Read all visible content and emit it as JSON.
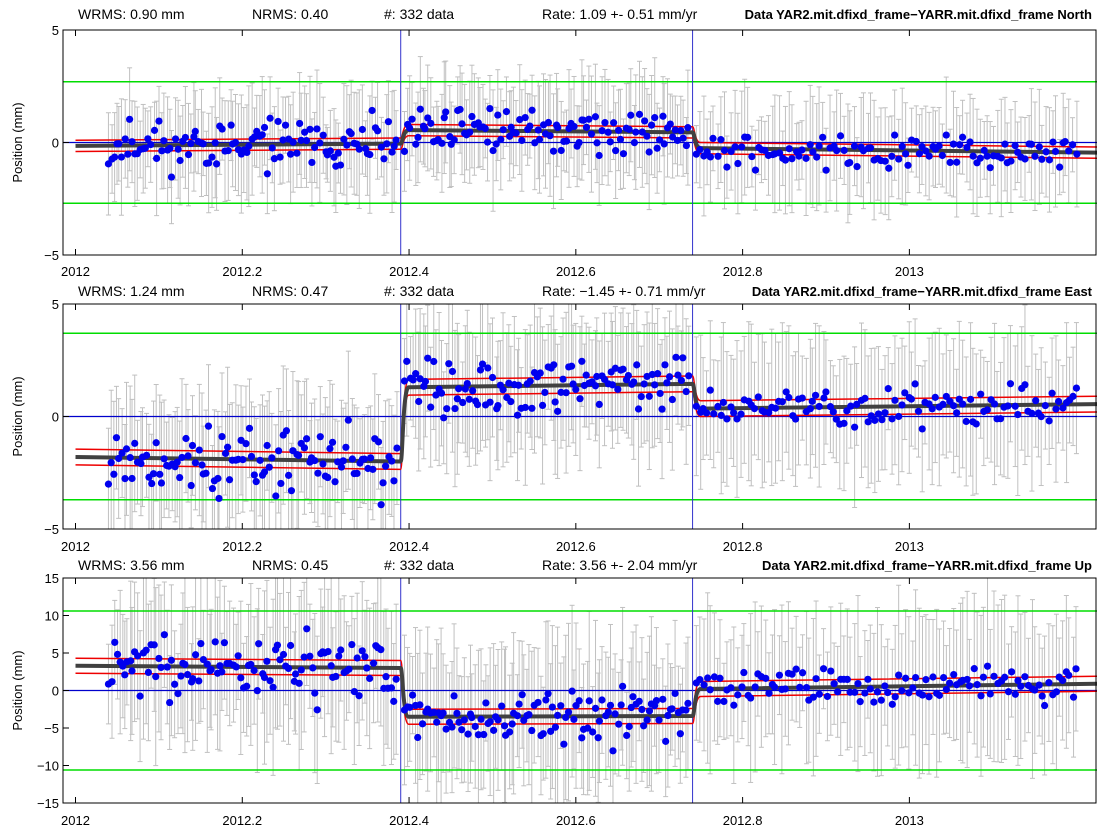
{
  "colors": {
    "points": "#0000ee",
    "error_bars": "#c0c0c0",
    "model": "#404040",
    "envelope": "#ee0000",
    "threshold": "#00dd00",
    "zero_line": "#0000cc",
    "break_line": "#3333cc"
  },
  "chart_data": [
    {
      "type": "scatter",
      "panel": "north",
      "stats": {
        "wrms": "WRMS:   0.90 mm",
        "nrms": "NRMS:  0.40",
        "count": "#:  332 data",
        "rate": "Rate:     1.09 +-   0.51 mm/yr"
      },
      "title": "Data YAR2.mit.dfixd_frame−YARR.mit.dfixd_frame North",
      "ylabel": "Position (mm)",
      "xlim": [
        2011.985,
        2013.225
      ],
      "ylim": [
        -5,
        5
      ],
      "xticks": [
        2012,
        2012.2,
        2012.4,
        2012.6,
        2012.8,
        2013
      ],
      "xtick_labels": [
        "2012",
        "2012.2",
        "2012.4",
        "2012.6",
        "2012.8",
        "2013"
      ],
      "yticks": [
        -5,
        0,
        5
      ],
      "ytick_labels": [
        "−5",
        "0",
        "5"
      ],
      "threshold": 2.7,
      "breaks": [
        2012.39,
        2012.74
      ],
      "model_segments": [
        {
          "x": [
            2012.0,
            2012.39
          ],
          "y": [
            -0.15,
            -0.05
          ]
        },
        {
          "x": [
            2012.39,
            2012.74
          ],
          "y": [
            0.55,
            0.45
          ]
        },
        {
          "x": [
            2012.74,
            2013.225
          ],
          "y": [
            -0.25,
            -0.45
          ]
        }
      ],
      "envelope_offset": 0.25,
      "point_sets": [
        {
          "x0": 2012.04,
          "x1": 2012.385,
          "center": -0.1,
          "spread": 1.0,
          "n": 110,
          "seed": 11
        },
        {
          "x0": 2012.395,
          "x1": 2012.735,
          "center": 0.55,
          "spread": 0.9,
          "n": 110,
          "seed": 12
        },
        {
          "x0": 2012.745,
          "x1": 2013.2,
          "center": -0.4,
          "spread": 0.65,
          "n": 112,
          "seed": 13
        }
      ],
      "error_range": [
        1.2,
        2.7
      ]
    },
    {
      "type": "scatter",
      "panel": "east",
      "stats": {
        "wrms": "WRMS:   1.24 mm",
        "nrms": "NRMS:  0.47",
        "count": "#:  332 data",
        "rate": "Rate:    −1.45 +-   0.71 mm/yr"
      },
      "title": "Data YAR2.mit.dfixd_frame−YARR.mit.dfixd_frame East",
      "ylabel": "Position (mm)",
      "xlim": [
        2011.985,
        2013.225
      ],
      "ylim": [
        -5,
        5
      ],
      "xticks": [
        2012,
        2012.2,
        2012.4,
        2012.6,
        2012.8,
        2013
      ],
      "xtick_labels": [
        "2012",
        "2012.2",
        "2012.4",
        "2012.6",
        "2012.8",
        "2013"
      ],
      "yticks": [
        -5,
        0,
        5
      ],
      "ytick_labels": [
        "−5",
        "0",
        "5"
      ],
      "threshold": 3.7,
      "breaks": [
        2012.39,
        2012.74
      ],
      "model_segments": [
        {
          "x": [
            2012.0,
            2012.39
          ],
          "y": [
            -1.8,
            -2.0
          ]
        },
        {
          "x": [
            2012.39,
            2012.74
          ],
          "y": [
            1.3,
            1.45
          ]
        },
        {
          "x": [
            2012.74,
            2013.225
          ],
          "y": [
            0.35,
            0.55
          ]
        }
      ],
      "envelope_offset": 0.35,
      "point_sets": [
        {
          "x0": 2012.04,
          "x1": 2012.385,
          "center": -2.0,
          "spread": 1.4,
          "n": 110,
          "seed": 21
        },
        {
          "x0": 2012.395,
          "x1": 2012.735,
          "center": 1.4,
          "spread": 1.2,
          "n": 110,
          "seed": 22
        },
        {
          "x0": 2012.745,
          "x1": 2013.2,
          "center": 0.5,
          "spread": 0.9,
          "n": 112,
          "seed": 23
        }
      ],
      "error_range": [
        1.8,
        3.6
      ]
    },
    {
      "type": "scatter",
      "panel": "up",
      "stats": {
        "wrms": "WRMS:   3.56 mm",
        "nrms": "NRMS:  0.45",
        "count": "#:  332 data",
        "rate": "Rate:     3.56 +-   2.04 mm/yr"
      },
      "title": "Data YAR2.mit.dfixd_frame−YARR.mit.dfixd_frame Up",
      "ylabel": "Position (mm)",
      "xlim": [
        2011.985,
        2013.225
      ],
      "ylim": [
        -15,
        15
      ],
      "xticks": [
        2012,
        2012.2,
        2012.4,
        2012.6,
        2012.8,
        2013
      ],
      "xtick_labels": [
        "2012",
        "2012.2",
        "2012.4",
        "2012.6",
        "2012.8",
        "2013"
      ],
      "yticks": [
        -15,
        -10,
        -5,
        0,
        5,
        10,
        15
      ],
      "ytick_labels": [
        "−15",
        "−10",
        "−5",
        "0",
        "5",
        "10",
        "15"
      ],
      "threshold": 10.6,
      "breaks": [
        2012.39,
        2012.74
      ],
      "model_segments": [
        {
          "x": [
            2012.0,
            2012.39
          ],
          "y": [
            3.3,
            3.0
          ]
        },
        {
          "x": [
            2012.39,
            2012.74
          ],
          "y": [
            -3.5,
            -3.4
          ]
        },
        {
          "x": [
            2012.74,
            2013.225
          ],
          "y": [
            0.2,
            0.9
          ]
        }
      ],
      "envelope_offset": 1.0,
      "point_sets": [
        {
          "x0": 2012.04,
          "x1": 2012.385,
          "center": 3.2,
          "spread": 4.0,
          "n": 110,
          "seed": 31
        },
        {
          "x0": 2012.395,
          "x1": 2012.735,
          "center": -3.5,
          "spread": 3.2,
          "n": 110,
          "seed": 32
        },
        {
          "x0": 2012.745,
          "x1": 2013.2,
          "center": 0.8,
          "spread": 2.6,
          "n": 112,
          "seed": 33
        }
      ],
      "error_range": [
        5.0,
        12.0
      ]
    }
  ]
}
